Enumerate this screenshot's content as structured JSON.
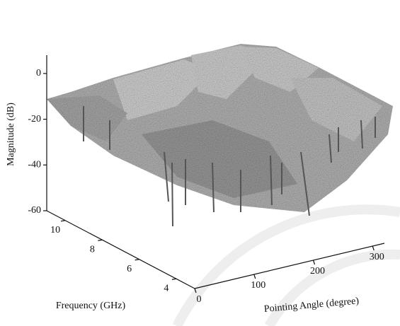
{
  "chart_data": {
    "type": "surface3d",
    "zlabel": "Magnitude (dB)",
    "ylabel": "Frequency (GHz)",
    "xlabel": "Pointing Angle (degree)",
    "zlim": [
      -60,
      8
    ],
    "zticks": [
      0,
      -20,
      -40,
      -60
    ],
    "ylim": [
      3,
      11
    ],
    "yticks": [
      10,
      8,
      6,
      4
    ],
    "xlim": [
      0,
      320
    ],
    "xticks": [
      0,
      100,
      200,
      300
    ]
  }
}
